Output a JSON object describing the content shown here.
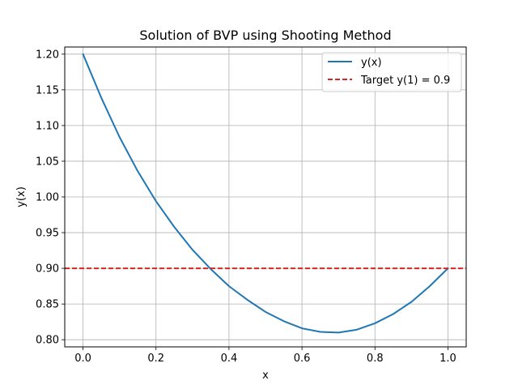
{
  "chart_data": {
    "type": "line",
    "title": "Solution of BVP using Shooting Method",
    "xlabel": "x",
    "ylabel": "y(x)",
    "xlim": [
      -0.05,
      1.05
    ],
    "ylim": [
      0.79,
      1.21
    ],
    "xticks": [
      0.0,
      0.2,
      0.4,
      0.6,
      0.8,
      1.0
    ],
    "xtick_labels": [
      "0.0",
      "0.2",
      "0.4",
      "0.6",
      "0.8",
      "1.0"
    ],
    "yticks": [
      0.8,
      0.85,
      0.9,
      0.95,
      1.0,
      1.05,
      1.1,
      1.15,
      1.2
    ],
    "ytick_labels": [
      "0.80",
      "0.85",
      "0.90",
      "0.95",
      "1.00",
      "1.05",
      "1.10",
      "1.15",
      "1.20"
    ],
    "grid": true,
    "legend_position": "top-right",
    "series": [
      {
        "name": "y(x)",
        "color": "#1f77b4",
        "style": "solid",
        "x": [
          0.0,
          0.05,
          0.1,
          0.15,
          0.2,
          0.25,
          0.3,
          0.35,
          0.4,
          0.45,
          0.5,
          0.55,
          0.6,
          0.65,
          0.7,
          0.75,
          0.8,
          0.85,
          0.9,
          0.95,
          1.0
        ],
        "y": [
          1.2,
          1.139,
          1.084,
          1.036,
          0.994,
          0.958,
          0.926,
          0.899,
          0.875,
          0.856,
          0.839,
          0.826,
          0.816,
          0.811,
          0.81,
          0.814,
          0.823,
          0.836,
          0.853,
          0.875,
          0.9
        ]
      },
      {
        "name": "Target y(1) = 0.9",
        "color": "#d62728",
        "style": "dashed",
        "x": [
          -0.05,
          1.05
        ],
        "y": [
          0.9,
          0.9
        ]
      }
    ]
  }
}
